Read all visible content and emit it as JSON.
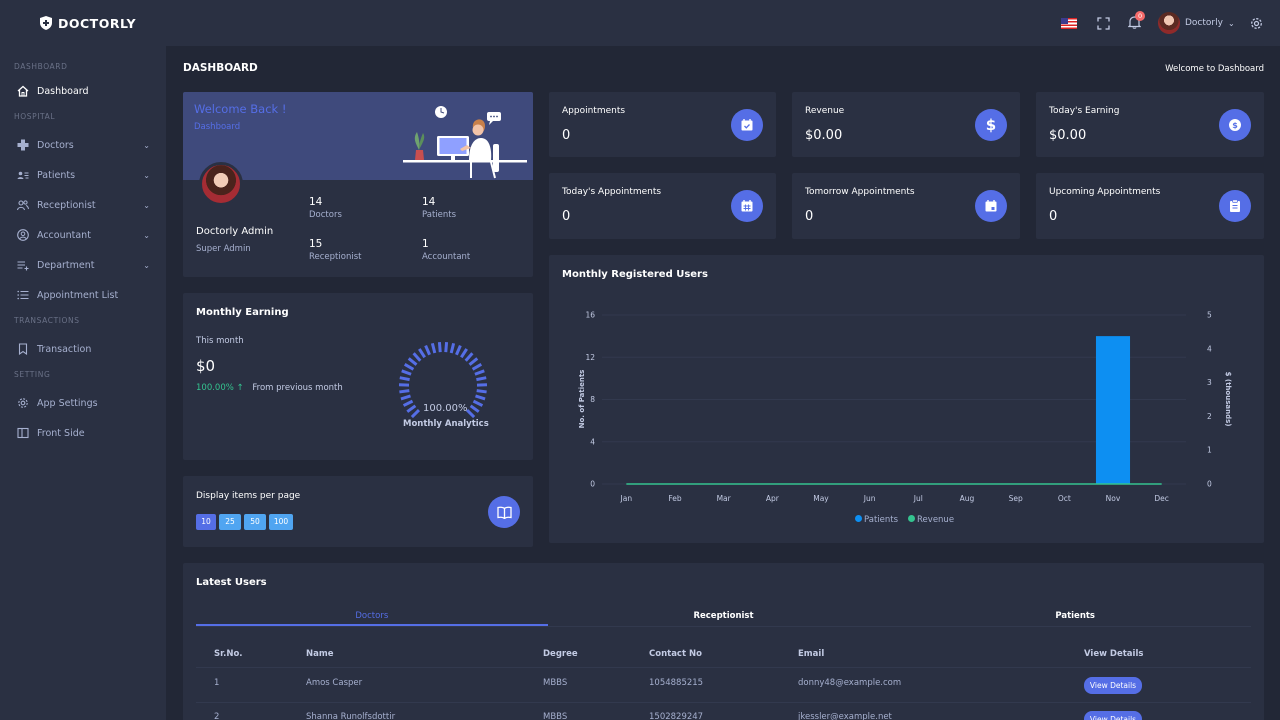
{
  "brand": {
    "name": "DOCTORLY"
  },
  "sidebar": {
    "sections": [
      "DASHBOARD",
      "HOSPITAL",
      "TRANSACTIONS",
      "SETTING"
    ],
    "items": [
      {
        "label": "Dashboard",
        "icon": "home-icon",
        "active": true
      },
      {
        "label": "Doctors",
        "icon": "plus-icon",
        "expandable": true
      },
      {
        "label": "Patients",
        "icon": "id-card-icon",
        "expandable": true
      },
      {
        "label": "Receptionist",
        "icon": "user-group-icon",
        "expandable": true
      },
      {
        "label": "Accountant",
        "icon": "user-circle-icon",
        "expandable": true
      },
      {
        "label": "Department",
        "icon": "list-add-icon",
        "expandable": true
      },
      {
        "label": "Appointment List",
        "icon": "list-icon"
      },
      {
        "label": "Transaction",
        "icon": "bookmark-icon"
      },
      {
        "label": "App Settings",
        "icon": "gear-icon"
      },
      {
        "label": "Front Side",
        "icon": "layout-icon"
      }
    ]
  },
  "topbar": {
    "notification_count": "0",
    "user_name": "Doctorly",
    "chevron": "⌄"
  },
  "page": {
    "title": "DASHBOARD",
    "breadcrumb": "Welcome to Dashboard"
  },
  "welcome": {
    "title": "Welcome Back !",
    "subtitle": "Dashboard",
    "name": "Doctorly Admin",
    "role": "Super Admin",
    "stats": [
      {
        "value": "14",
        "label": "Doctors"
      },
      {
        "value": "14",
        "label": "Patients"
      },
      {
        "value": "15",
        "label": "Receptionist"
      },
      {
        "value": "1",
        "label": "Accountant"
      }
    ]
  },
  "stat_cards": [
    {
      "label": "Appointments",
      "value": "0",
      "icon": "calendar-check-icon"
    },
    {
      "label": "Revenue",
      "value": "$0.00",
      "icon": "dollar-icon"
    },
    {
      "label": "Today's Earning",
      "value": "$0.00",
      "icon": "coin-icon"
    },
    {
      "label": "Today's Appointments",
      "value": "0",
      "icon": "calendar-grid-icon"
    },
    {
      "label": "Tomorrow Appointments",
      "value": "0",
      "icon": "calendar-icon"
    },
    {
      "label": "Upcoming Appointments",
      "value": "0",
      "icon": "clipboard-icon"
    }
  ],
  "monthly_earning": {
    "title": "Monthly Earning",
    "period": "This month",
    "amount": "$0",
    "change": "100.00%",
    "change_arrow": "↑",
    "change_text": "From previous month",
    "gauge_value": "100.00%",
    "gauge_percent": 100,
    "gauge_label": "Monthly Analytics"
  },
  "pagination": {
    "title": "Display items per page",
    "options": [
      "10",
      "25",
      "50",
      "100"
    ],
    "icon": "book-icon"
  },
  "chart_data": {
    "type": "bar",
    "title": "Monthly Registered Users",
    "categories": [
      "Jan",
      "Feb",
      "Mar",
      "Apr",
      "May",
      "Jun",
      "Jul",
      "Aug",
      "Sep",
      "Oct",
      "Nov",
      "Dec"
    ],
    "series": [
      {
        "name": "Patients",
        "type": "bar",
        "axis": "left",
        "color": "#0d8ff2",
        "values": [
          0,
          0,
          0,
          0,
          0,
          0,
          0,
          0,
          0,
          0,
          14,
          0
        ]
      },
      {
        "name": "Revenue",
        "type": "line",
        "axis": "right",
        "color": "#34c38f",
        "values": [
          0,
          0,
          0,
          0,
          0,
          0,
          0,
          0,
          0,
          0,
          0,
          0
        ]
      }
    ],
    "ylabel": "No. of Patients",
    "y2label": "$ (thousands)",
    "ylim": [
      0,
      16
    ],
    "yticks": [
      "0",
      "4",
      "8",
      "12",
      "16"
    ],
    "y2lim": [
      0,
      5
    ],
    "y2ticks": [
      "0",
      "1",
      "2",
      "3",
      "4",
      "5"
    ],
    "grid": true,
    "legend": "bottom"
  },
  "latest_users": {
    "title": "Latest Users",
    "tabs": [
      "Doctors",
      "Receptionist",
      "Patients"
    ],
    "columns": [
      "Sr.No.",
      "Name",
      "Degree",
      "Contact No",
      "Email",
      "View Details"
    ],
    "rows": [
      {
        "sr": "1",
        "name": "Amos Casper",
        "degree": "MBBS",
        "contact": "1054885215",
        "email": "donny48@example.com",
        "action": "View Details"
      },
      {
        "sr": "2",
        "name": "Shanna Runolfsdottir",
        "degree": "MBBS",
        "contact": "1502829247",
        "email": "jkessler@example.net",
        "action": "View Details"
      }
    ]
  }
}
